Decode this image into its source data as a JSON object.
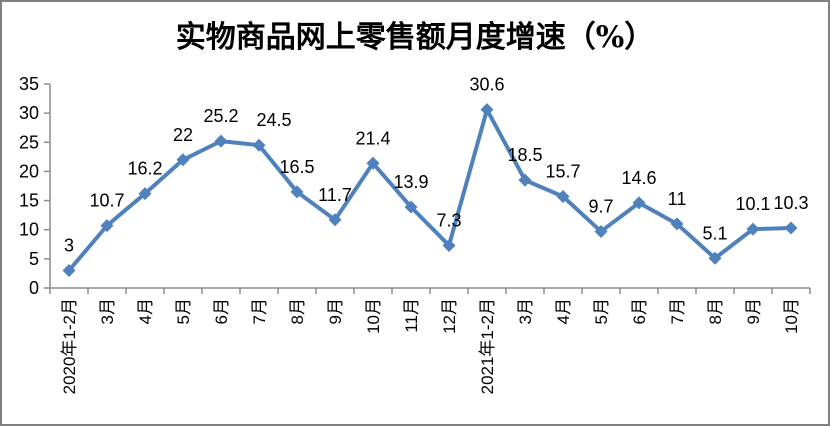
{
  "chart_data": {
    "type": "line",
    "title": "实物商品网上零售额月度增速（%）",
    "categories": [
      "2020年1-2月",
      "3月",
      "4月",
      "5月",
      "6月",
      "7月",
      "8月",
      "9月",
      "10月",
      "11月",
      "12月",
      "2021年1-2月",
      "3月",
      "4月",
      "5月",
      "6月",
      "7月",
      "8月",
      "9月",
      "10月"
    ],
    "values": [
      3,
      10.7,
      16.2,
      22,
      25.2,
      24.5,
      16.5,
      11.7,
      21.4,
      13.9,
      7.3,
      30.6,
      18.5,
      15.7,
      9.7,
      14.6,
      11,
      5.1,
      10.1,
      10.3
    ],
    "xlabel": "",
    "ylabel": "",
    "ylim": [
      0,
      35
    ],
    "yticks": [
      0,
      5,
      10,
      15,
      20,
      25,
      30,
      35
    ],
    "grid": false,
    "legend": "none",
    "data_labels": true,
    "marker": "diamond"
  },
  "colors": {
    "line": "#4F81BD",
    "axis": "#8C8C8C",
    "text": "#000000",
    "frame_border": "#808080",
    "background": "#FFFFFF"
  }
}
